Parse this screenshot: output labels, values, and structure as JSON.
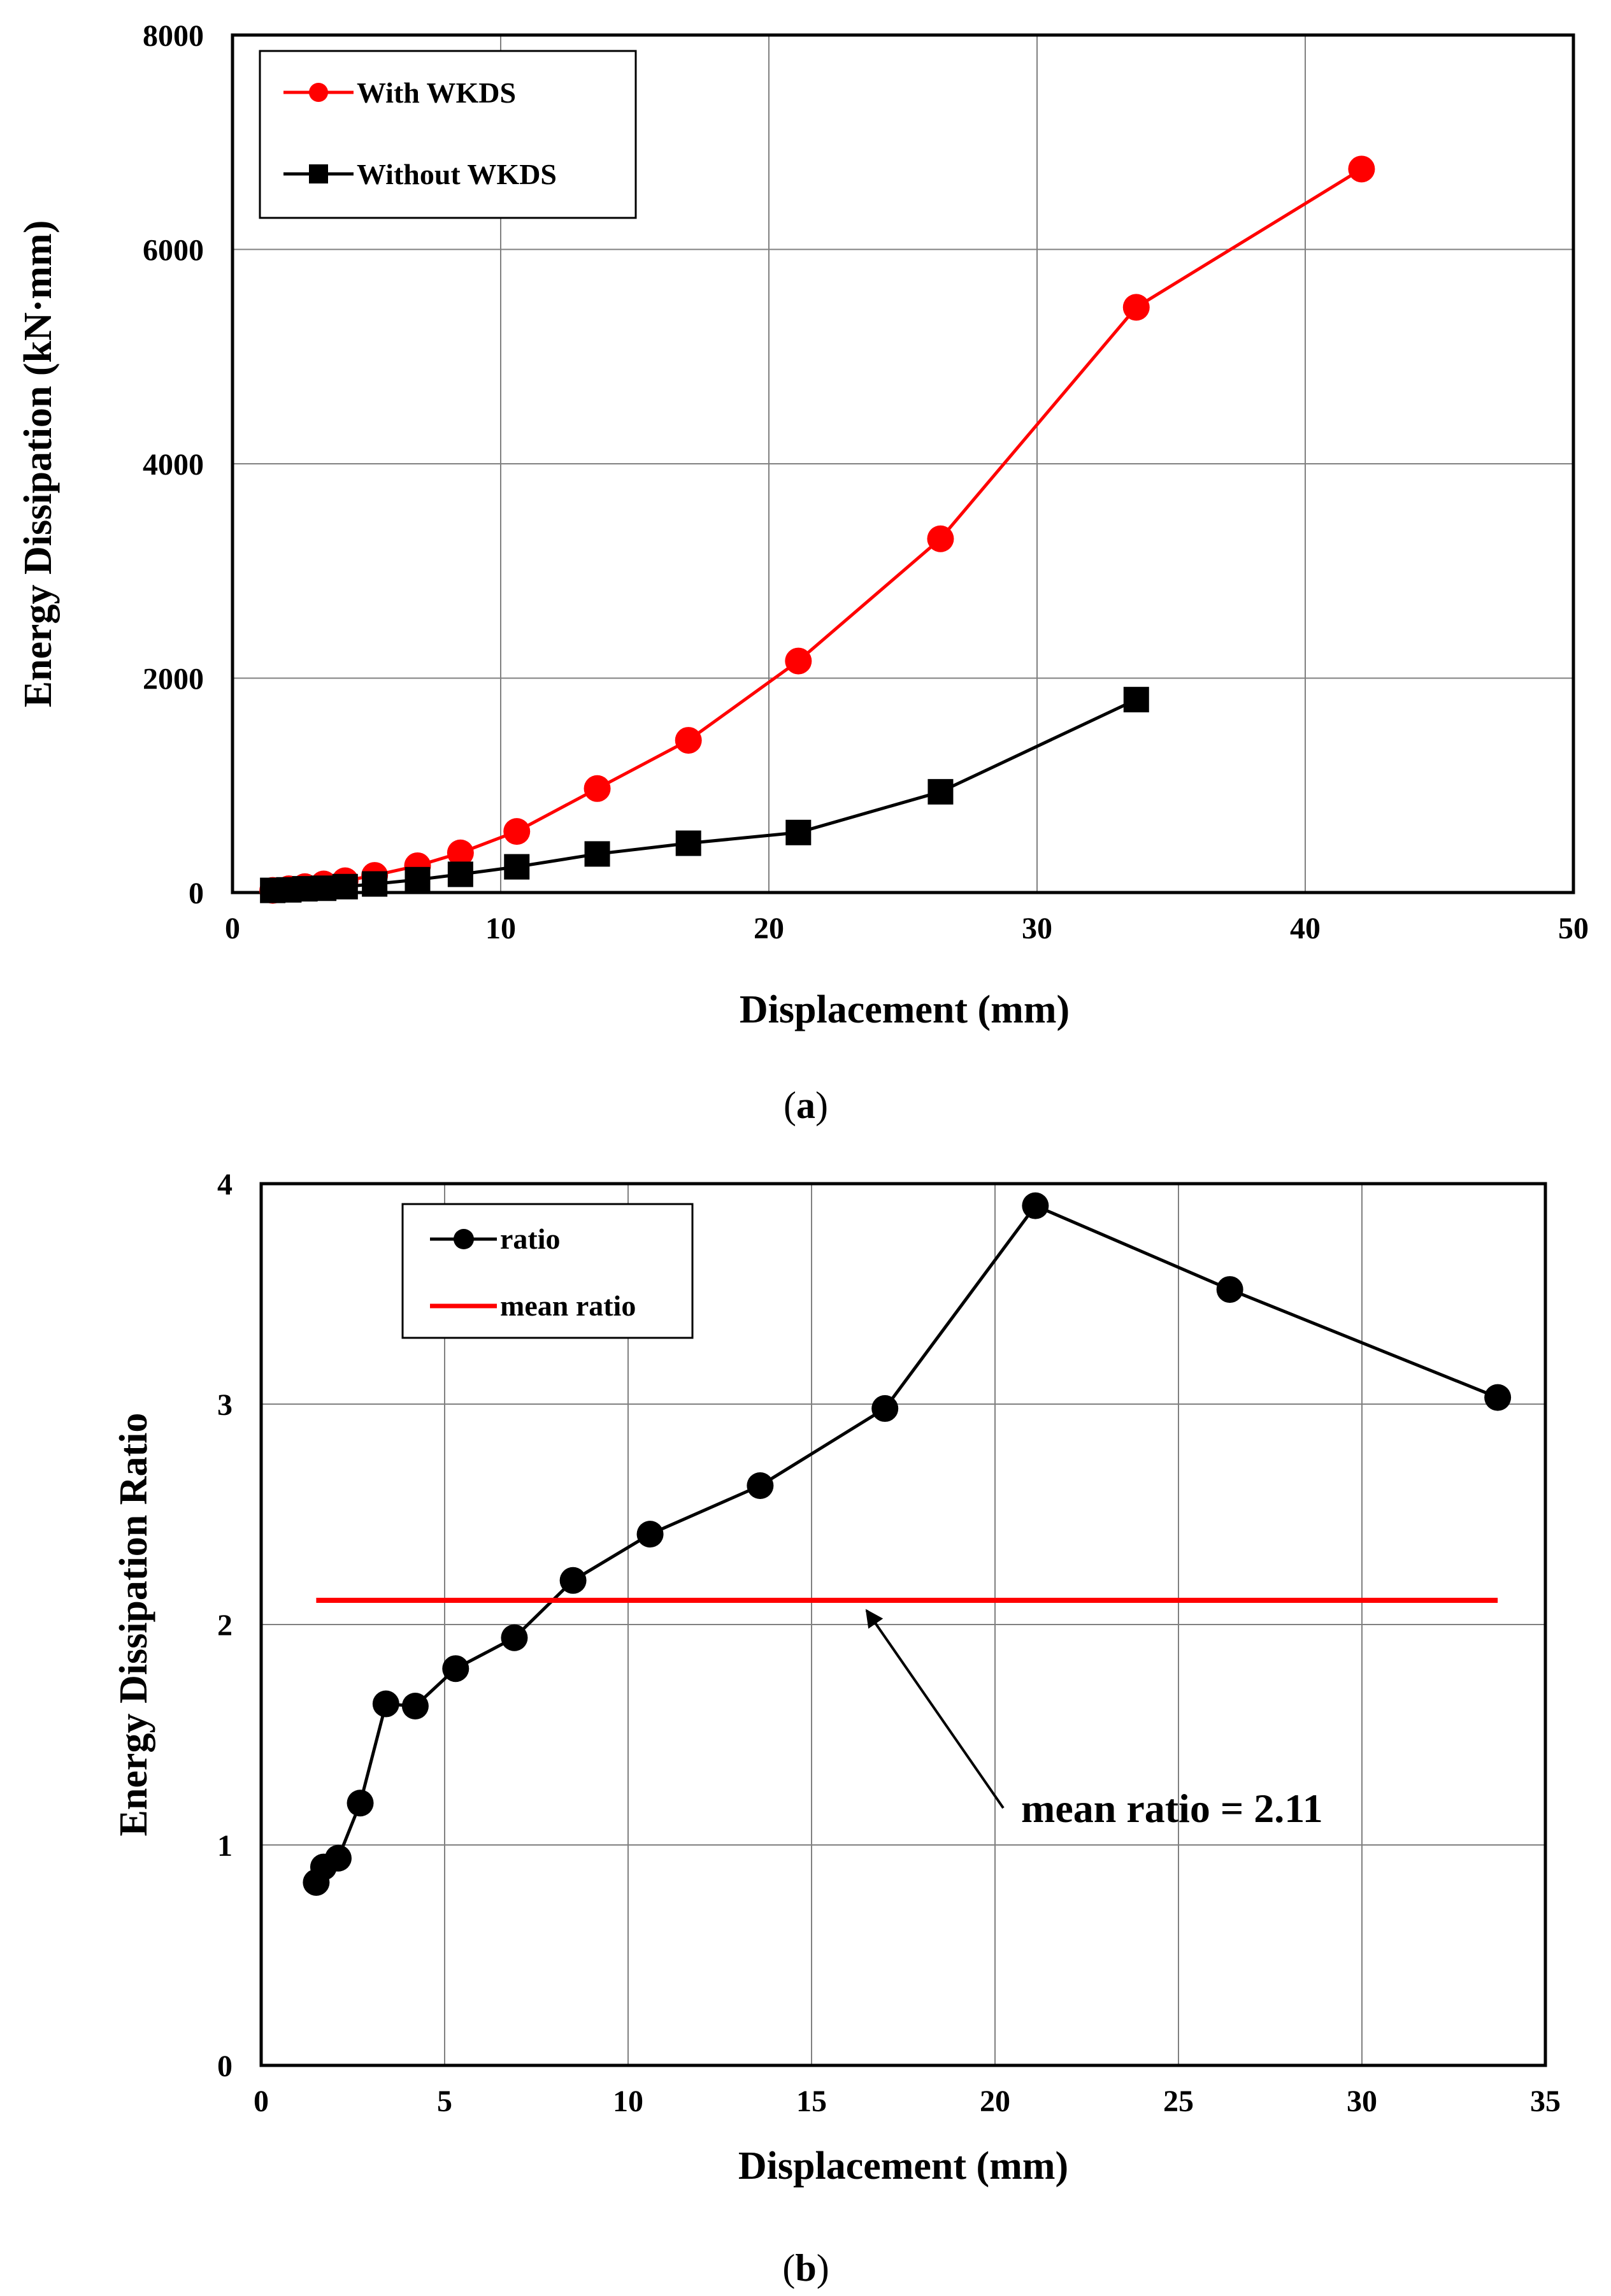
{
  "figure": {
    "caption_a": "a",
    "caption_b": "b"
  },
  "chart_data": [
    {
      "type": "line",
      "title": "",
      "xlabel": "Displacement  (mm)",
      "ylabel": "Energy  Dissipation  (kN·mm)",
      "xlim": [
        0,
        50
      ],
      "ylim": [
        0,
        8000
      ],
      "xticks": [
        0,
        10,
        20,
        30,
        40,
        50
      ],
      "yticks": [
        0,
        2000,
        4000,
        6000,
        8000
      ],
      "grid": true,
      "legend_position": "top-left",
      "series": [
        {
          "name": "With WKDS",
          "color": "#ff0000",
          "marker": "circle",
          "x": [
            1.5,
            2.1,
            2.7,
            3.4,
            4.2,
            5.3,
            6.9,
            8.5,
            10.6,
            13.6,
            17.0,
            21.1,
            26.4,
            33.7,
            42.1
          ],
          "y": [
            20,
            35,
            55,
            80,
            110,
            160,
            250,
            370,
            570,
            970,
            1420,
            2160,
            3300,
            5460,
            6750
          ]
        },
        {
          "name": "Without WKDS",
          "color": "#000000",
          "marker": "square",
          "x": [
            1.5,
            2.1,
            2.7,
            3.4,
            4.2,
            5.3,
            6.9,
            8.5,
            10.6,
            13.6,
            17.0,
            21.1,
            26.4,
            33.7
          ],
          "y": [
            20,
            25,
            35,
            40,
            55,
            80,
            120,
            170,
            240,
            360,
            460,
            560,
            940,
            1800
          ]
        }
      ]
    },
    {
      "type": "line",
      "title": "",
      "xlabel": "Displacement  (mm)",
      "ylabel": "Energy  Dissipation  Ratio",
      "xlim": [
        0,
        35
      ],
      "ylim": [
        0,
        4
      ],
      "xticks": [
        0,
        5,
        10,
        15,
        20,
        25,
        30,
        35
      ],
      "yticks": [
        0,
        1,
        2,
        3,
        4
      ],
      "grid": true,
      "legend_position": "top-left",
      "series": [
        {
          "name": "ratio",
          "color": "#000000",
          "marker": "circle",
          "x": [
            1.5,
            1.7,
            2.1,
            2.7,
            3.4,
            4.2,
            5.3,
            6.9,
            8.5,
            10.6,
            13.6,
            17.0,
            21.1,
            26.4,
            33.7
          ],
          "y": [
            0.83,
            0.9,
            0.94,
            1.19,
            1.64,
            1.63,
            1.8,
            1.94,
            2.2,
            2.41,
            2.63,
            2.98,
            3.9,
            3.52,
            3.03
          ]
        },
        {
          "name": "mean ratio",
          "color": "#ff0000",
          "marker": "none",
          "x": [
            1.5,
            33.7
          ],
          "y": [
            2.11,
            2.11
          ]
        }
      ],
      "annotation": {
        "text": "mean ratio = 2.11",
        "points_to": {
          "x": 16.5,
          "y": 2.11
        }
      }
    }
  ]
}
